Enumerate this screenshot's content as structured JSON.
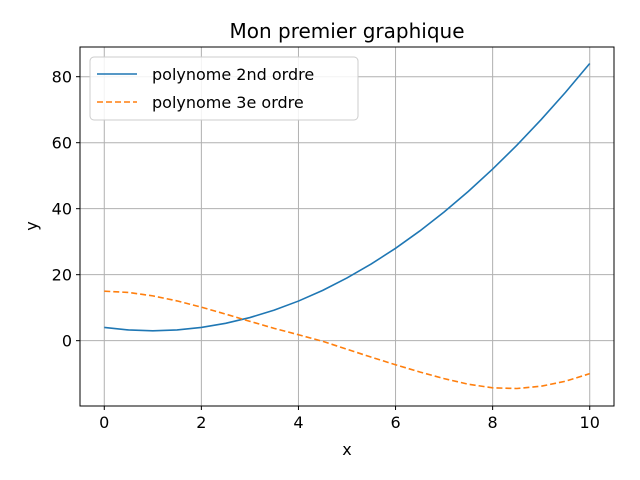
{
  "chart_data": {
    "type": "line",
    "title": "Mon premier graphique",
    "xlabel": "x",
    "ylabel": "y",
    "xlim": [
      -0.5,
      10.5
    ],
    "ylim": [
      -19.8,
      89
    ],
    "xticks": [
      0,
      2,
      4,
      6,
      8,
      10
    ],
    "yticks": [
      0,
      20,
      40,
      60,
      80
    ],
    "grid": true,
    "legend": "top-left",
    "series": [
      {
        "name": "polynome 2nd ordre",
        "color": "#1f77b4",
        "style": "solid",
        "x": [
          0,
          0.5,
          1,
          1.5,
          2,
          2.5,
          3,
          3.5,
          4,
          4.5,
          5,
          5.5,
          6,
          6.5,
          7,
          7.5,
          8,
          8.5,
          9,
          9.5,
          10
        ],
        "y": [
          4,
          3.25,
          3,
          3.25,
          4,
          5.25,
          7,
          9.25,
          12,
          15.25,
          19,
          23.25,
          28,
          33.25,
          39,
          45.25,
          52,
          59.25,
          67,
          75.25,
          84
        ]
      },
      {
        "name": "polynome 3e ordre",
        "color": "#ff7f0e",
        "style": "dashed",
        "x": [
          0,
          0.5,
          1,
          1.5,
          2,
          2.5,
          3,
          3.5,
          4,
          4.5,
          5,
          5.5,
          6,
          6.5,
          7,
          7.5,
          8,
          8.5,
          9,
          9.5,
          10
        ],
        "y": [
          15,
          14.61,
          13.58,
          12.05,
          10.16,
          8.05,
          5.86,
          3.73,
          1.8,
          -0.2,
          -2.6,
          -5.0,
          -7.3,
          -9.5,
          -11.5,
          -13.2,
          -14.3,
          -14.5,
          -13.8,
          -12.3,
          -10
        ]
      }
    ]
  }
}
